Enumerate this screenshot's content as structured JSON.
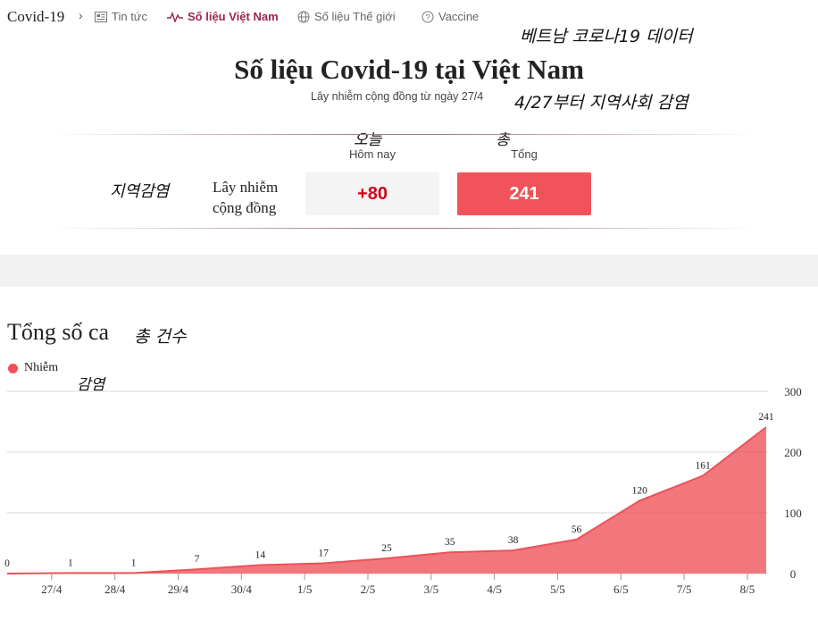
{
  "nav": {
    "brand": "Covid-19",
    "items": [
      {
        "label": "Tin tức",
        "icon": "news-icon"
      },
      {
        "label": "Số liệu Việt Nam",
        "icon": "pulse-icon",
        "active": true
      },
      {
        "label": "Số liệu Thế giới",
        "icon": "globe-icon"
      },
      {
        "label": "Vaccine",
        "icon": "question-icon"
      }
    ]
  },
  "annotations": {
    "title_ko": "베트남 코로나19 데이터",
    "subtitle_ko": "4/27부터 지역사회 감염",
    "today_ko": "오늘",
    "total_ko": "총",
    "row_ko": "지역감염",
    "chart_title_ko": "총 건수",
    "legend_ko": "감염"
  },
  "summary": {
    "title": "Số liệu Covid-19 tại Việt Nam",
    "subtitle": "Lây nhiễm cộng đồng từ ngày 27/4",
    "col_today": "Hôm nay",
    "col_total": "Tổng",
    "row_label_1": "Lây nhiễm",
    "row_label_2": "cộng đồng",
    "today_value": "+80",
    "total_value": "241"
  },
  "chart": {
    "title": "Tổng số ca",
    "legend": "Nhiễm",
    "color": "#ee5157"
  },
  "chart_data": {
    "type": "area",
    "title": "Tổng số ca",
    "series": [
      {
        "name": "Nhiễm",
        "values": [
          0,
          1,
          1,
          7,
          14,
          17,
          25,
          35,
          38,
          56,
          120,
          161,
          241
        ]
      }
    ],
    "categories": [
      "",
      "27/4",
      "28/4",
      "29/4",
      "30/4",
      "1/5",
      "2/5",
      "3/5",
      "4/5",
      "5/5",
      "6/5",
      "7/5",
      "8/5"
    ],
    "ylim": [
      0,
      300
    ],
    "yticks": [
      0,
      100,
      200,
      300
    ],
    "grid": true,
    "legend_position": "top-left"
  }
}
